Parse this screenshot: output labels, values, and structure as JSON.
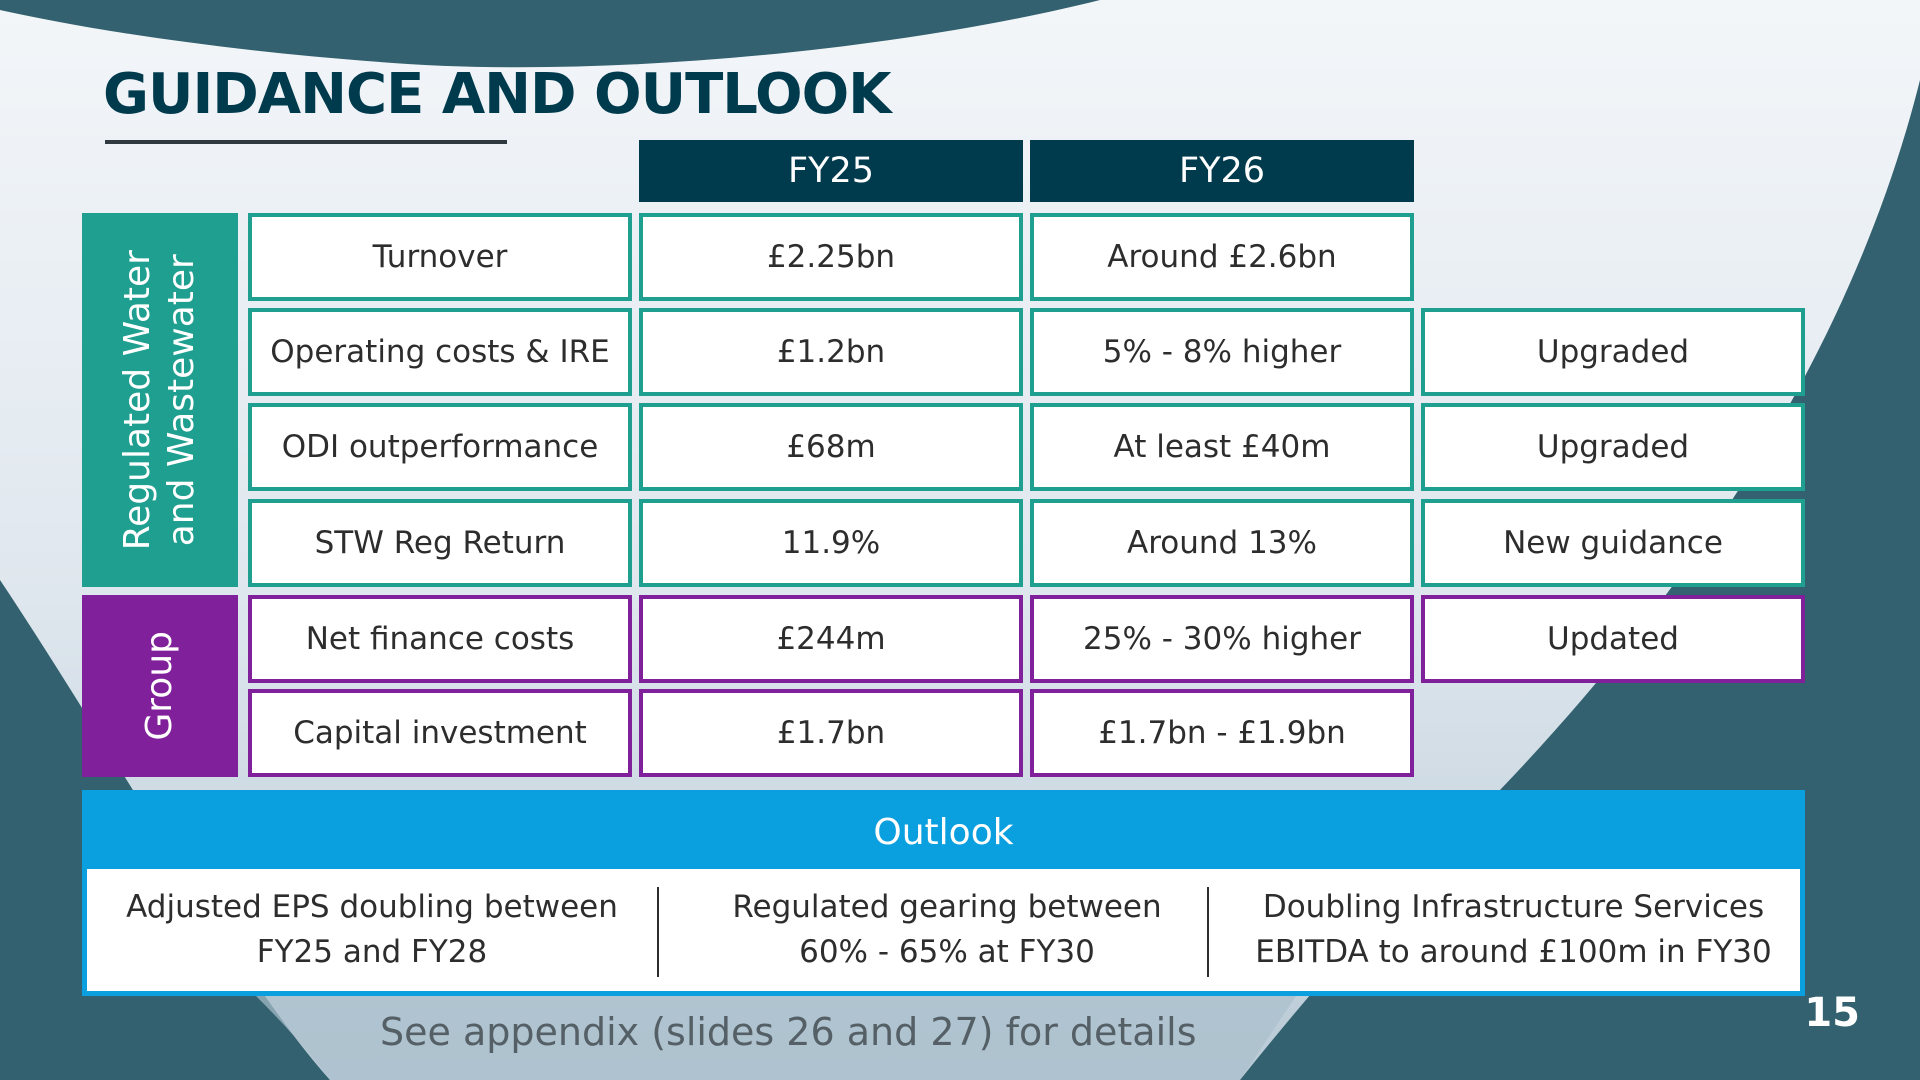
{
  "slide": {
    "title": "GUIDANCE AND OUTLOOK",
    "page_number": "15",
    "footnote": "See appendix (slides 26 and 27) for details"
  },
  "colors": {
    "navy": "#003a4d",
    "teal": "#1e9f8f",
    "purple": "#80209a",
    "blue": "#0a9fdf",
    "background_dark": "#33616f"
  },
  "table": {
    "headers": [
      "FY25",
      "FY26"
    ],
    "groups": [
      {
        "label": "Regulated Water\nand Wastewater",
        "color": "teal",
        "rows": [
          {
            "metric": "Turnover",
            "fy25": "£2.25bn",
            "fy26": "Around £2.6bn",
            "status": ""
          },
          {
            "metric": "Operating costs & IRE",
            "fy25": "£1.2bn",
            "fy26": "5% - 8% higher",
            "status": "Upgraded"
          },
          {
            "metric": "ODI outperformance",
            "fy25": "£68m",
            "fy26": "At least £40m",
            "status": "Upgraded"
          },
          {
            "metric": "STW Reg Return",
            "fy25": "11.9%",
            "fy26": "Around 13%",
            "status": "New guidance"
          }
        ]
      },
      {
        "label": "Group",
        "color": "purple",
        "rows": [
          {
            "metric": "Net finance costs",
            "fy25": "£244m",
            "fy26": "25% - 30% higher",
            "status": "Updated"
          },
          {
            "metric": "Capital investment",
            "fy25": "£1.7bn",
            "fy26": "£1.7bn - £1.9bn",
            "status": ""
          }
        ]
      }
    ]
  },
  "outlook": {
    "title": "Outlook",
    "items": [
      "Adjusted EPS doubling between\nFY25 and FY28",
      "Regulated gearing between\n60% - 65% at FY30",
      "Doubling Infrastructure Services\nEBITDA to around £100m in FY30"
    ]
  }
}
